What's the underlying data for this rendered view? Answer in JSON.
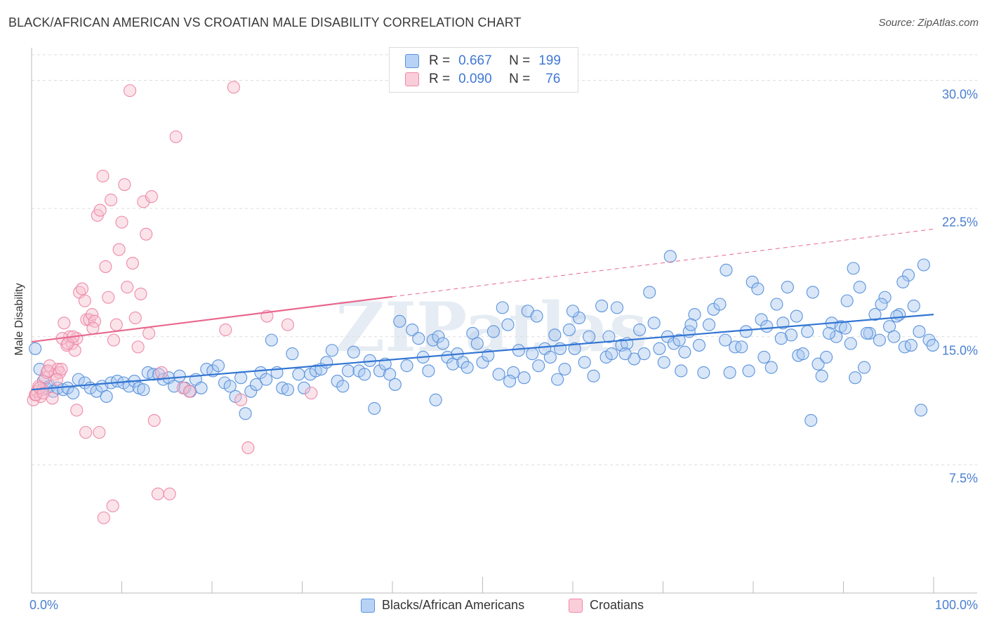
{
  "title": "BLACK/AFRICAN AMERICAN VS CROATIAN MALE DISABILITY CORRELATION CHART",
  "source": "Source: ZipAtlas.com",
  "watermark": "ZIPatlas",
  "legend": {
    "rows": [
      {
        "r_label": "R =",
        "r_value": "0.667",
        "n_label": "N =",
        "n_value": "199"
      },
      {
        "r_label": "R =",
        "r_value": "0.090",
        "n_label": "N =",
        "n_value": "76"
      }
    ]
  },
  "colors": {
    "blue_fill": "#a9c8f0",
    "blue_stroke": "#5b93dc",
    "blue_line": "#3275d3",
    "pink_fill": "#f7c0d0",
    "pink_stroke": "#ee8aa8",
    "pink_line": "#e8678e",
    "tick_text": "#4a7fd0",
    "grid": "#dddddd"
  },
  "chart_data": {
    "type": "scatter",
    "title": "BLACK/AFRICAN AMERICAN VS CROATIAN MALE DISABILITY CORRELATION CHART",
    "xlabel": "",
    "ylabel": "Male Disability",
    "xlim": [
      0,
      100
    ],
    "ylim": [
      0,
      31.5
    ],
    "y_ticks": [
      {
        "value": 7.5,
        "label": "7.5%"
      },
      {
        "value": 15.0,
        "label": "15.0%"
      },
      {
        "value": 22.5,
        "label": "22.5%"
      },
      {
        "value": 30.0,
        "label": "30.0%"
      }
    ],
    "x_tick_labels": {
      "min": "0.0%",
      "max": "100.0%"
    },
    "series": [
      {
        "name": "Blacks/African Americans",
        "R": 0.667,
        "N": 199,
        "trend": {
          "x": [
            0,
            100
          ],
          "y": [
            11.9,
            16.3
          ],
          "dashed_from": null
        },
        "points": [
          [
            0.4,
            14.3
          ],
          [
            0.9,
            13.1
          ],
          [
            1.3,
            12.4
          ],
          [
            1.6,
            12.0
          ],
          [
            2.0,
            12.1
          ],
          [
            2.4,
            11.8
          ],
          [
            2.9,
            12.0
          ],
          [
            3.5,
            11.9
          ],
          [
            4.0,
            12.0
          ],
          [
            4.6,
            11.7
          ],
          [
            5.2,
            12.5
          ],
          [
            5.9,
            12.3
          ],
          [
            6.5,
            12.0
          ],
          [
            7.2,
            11.8
          ],
          [
            7.8,
            12.1
          ],
          [
            8.3,
            11.5
          ],
          [
            8.8,
            12.3
          ],
          [
            9.5,
            12.4
          ],
          [
            10.2,
            12.3
          ],
          [
            10.8,
            12.1
          ],
          [
            11.4,
            12.4
          ],
          [
            11.9,
            12.0
          ],
          [
            12.4,
            11.9
          ],
          [
            12.9,
            12.9
          ],
          [
            13.5,
            12.8
          ],
          [
            14.1,
            12.8
          ],
          [
            14.6,
            12.5
          ],
          [
            15.2,
            12.6
          ],
          [
            15.8,
            12.1
          ],
          [
            16.4,
            12.7
          ],
          [
            17.0,
            12.0
          ],
          [
            17.6,
            11.8
          ],
          [
            18.2,
            12.5
          ],
          [
            18.8,
            12.0
          ],
          [
            19.4,
            13.1
          ],
          [
            20.1,
            13.0
          ],
          [
            20.7,
            13.3
          ],
          [
            21.4,
            12.3
          ],
          [
            22.0,
            12.1
          ],
          [
            22.6,
            11.5
          ],
          [
            23.2,
            12.6
          ],
          [
            23.7,
            10.5
          ],
          [
            24.3,
            11.8
          ],
          [
            24.9,
            12.2
          ],
          [
            25.4,
            12.9
          ],
          [
            26.0,
            12.5
          ],
          [
            26.6,
            14.8
          ],
          [
            27.2,
            12.9
          ],
          [
            27.8,
            12.0
          ],
          [
            28.4,
            11.9
          ],
          [
            28.9,
            14.0
          ],
          [
            29.6,
            12.8
          ],
          [
            30.2,
            12.0
          ],
          [
            30.9,
            12.8
          ],
          [
            31.5,
            13.0
          ],
          [
            32.1,
            13.1
          ],
          [
            32.7,
            13.5
          ],
          [
            33.3,
            14.2
          ],
          [
            33.9,
            12.4
          ],
          [
            34.5,
            12.1
          ],
          [
            35.1,
            13.0
          ],
          [
            35.7,
            14.1
          ],
          [
            36.3,
            13.0
          ],
          [
            36.9,
            12.8
          ],
          [
            37.5,
            13.6
          ],
          [
            38.0,
            10.8
          ],
          [
            38.6,
            13.0
          ],
          [
            39.2,
            13.4
          ],
          [
            39.7,
            12.8
          ],
          [
            40.3,
            12.2
          ],
          [
            40.8,
            15.9
          ],
          [
            41.6,
            13.3
          ],
          [
            42.2,
            15.4
          ],
          [
            42.9,
            14.9
          ],
          [
            43.4,
            13.8
          ],
          [
            44.0,
            13.0
          ],
          [
            44.5,
            14.8
          ],
          [
            45.1,
            15.0
          ],
          [
            45.6,
            14.6
          ],
          [
            46.1,
            13.8
          ],
          [
            46.7,
            13.4
          ],
          [
            47.2,
            14.0
          ],
          [
            47.8,
            13.5
          ],
          [
            48.3,
            13.2
          ],
          [
            48.9,
            15.2
          ],
          [
            49.4,
            14.6
          ],
          [
            50.0,
            13.5
          ],
          [
            50.6,
            13.9
          ],
          [
            51.2,
            15.3
          ],
          [
            51.8,
            12.8
          ],
          [
            52.2,
            16.7
          ],
          [
            52.8,
            15.7
          ],
          [
            53.4,
            12.9
          ],
          [
            54.0,
            14.2
          ],
          [
            54.6,
            12.6
          ],
          [
            55.0,
            16.5
          ],
          [
            55.5,
            14.0
          ],
          [
            56.2,
            13.3
          ],
          [
            56.9,
            14.3
          ],
          [
            57.5,
            13.8
          ],
          [
            58.0,
            15.1
          ],
          [
            58.6,
            14.3
          ],
          [
            59.1,
            13.1
          ],
          [
            59.6,
            15.4
          ],
          [
            60.2,
            14.3
          ],
          [
            60.7,
            16.1
          ],
          [
            61.3,
            13.5
          ],
          [
            61.8,
            15.0
          ],
          [
            62.3,
            12.7
          ],
          [
            63.2,
            16.8
          ],
          [
            63.7,
            13.8
          ],
          [
            64.3,
            14.0
          ],
          [
            64.9,
            16.7
          ],
          [
            65.4,
            14.5
          ],
          [
            66.0,
            14.6
          ],
          [
            66.8,
            13.7
          ],
          [
            67.4,
            15.4
          ],
          [
            67.9,
            14.0
          ],
          [
            68.5,
            17.6
          ],
          [
            69.0,
            15.8
          ],
          [
            69.6,
            14.3
          ],
          [
            70.1,
            13.5
          ],
          [
            70.5,
            15.0
          ],
          [
            71.2,
            14.6
          ],
          [
            71.8,
            14.8
          ],
          [
            72.4,
            14.1
          ],
          [
            72.9,
            15.3
          ],
          [
            73.5,
            16.3
          ],
          [
            74.0,
            14.5
          ],
          [
            74.5,
            12.9
          ],
          [
            75.1,
            15.7
          ],
          [
            75.6,
            16.6
          ],
          [
            76.3,
            16.9
          ],
          [
            76.9,
            14.8
          ],
          [
            77.4,
            12.9
          ],
          [
            78.0,
            14.4
          ],
          [
            78.7,
            14.4
          ],
          [
            79.2,
            15.3
          ],
          [
            79.9,
            18.2
          ],
          [
            80.5,
            17.8
          ],
          [
            80.9,
            16.0
          ],
          [
            81.5,
            15.6
          ],
          [
            82.0,
            13.2
          ],
          [
            82.6,
            16.9
          ],
          [
            83.3,
            15.8
          ],
          [
            83.8,
            17.9
          ],
          [
            84.2,
            15.1
          ],
          [
            85.0,
            13.9
          ],
          [
            85.5,
            14.0
          ],
          [
            86.0,
            15.3
          ],
          [
            86.6,
            17.6
          ],
          [
            87.2,
            13.4
          ],
          [
            87.6,
            12.7
          ],
          [
            88.1,
            13.8
          ],
          [
            88.7,
            15.8
          ],
          [
            89.2,
            15.0
          ],
          [
            89.7,
            15.6
          ],
          [
            90.2,
            15.5
          ],
          [
            90.8,
            14.6
          ],
          [
            91.3,
            12.6
          ],
          [
            91.8,
            17.9
          ],
          [
            92.3,
            13.2
          ],
          [
            92.9,
            15.2
          ],
          [
            93.5,
            16.3
          ],
          [
            94.0,
            14.8
          ],
          [
            94.6,
            17.3
          ],
          [
            95.1,
            15.6
          ],
          [
            95.6,
            15.0
          ],
          [
            96.2,
            16.3
          ],
          [
            96.8,
            14.4
          ],
          [
            97.2,
            18.6
          ],
          [
            97.8,
            16.8
          ],
          [
            98.4,
            15.3
          ],
          [
            98.9,
            19.2
          ],
          [
            99.5,
            14.8
          ],
          [
            53.0,
            12.4
          ],
          [
            56.0,
            16.2
          ],
          [
            60.0,
            16.5
          ],
          [
            64.0,
            15.0
          ],
          [
            70.8,
            19.7
          ],
          [
            72.0,
            13.0
          ],
          [
            77.0,
            18.9
          ],
          [
            81.2,
            13.8
          ],
          [
            84.8,
            16.2
          ],
          [
            86.4,
            10.1
          ],
          [
            88.4,
            15.2
          ],
          [
            90.4,
            17.1
          ],
          [
            92.6,
            15.2
          ],
          [
            94.2,
            16.9
          ],
          [
            95.9,
            16.2
          ],
          [
            97.5,
            14.5
          ],
          [
            98.6,
            10.7
          ],
          [
            99.9,
            14.5
          ],
          [
            44.8,
            11.3
          ],
          [
            58.3,
            12.5
          ],
          [
            65.8,
            14.0
          ],
          [
            73.1,
            15.7
          ],
          [
            79.5,
            13.0
          ],
          [
            83.1,
            14.9
          ],
          [
            91.1,
            19.0
          ],
          [
            96.6,
            18.2
          ]
        ]
      },
      {
        "name": "Croatians",
        "R": 0.09,
        "N": 76,
        "trend": {
          "x": [
            0,
            100
          ],
          "y": [
            14.7,
            21.3
          ],
          "dashed_from": 40
        },
        "points": [
          [
            0.2,
            11.3
          ],
          [
            0.4,
            11.6
          ],
          [
            0.6,
            11.8
          ],
          [
            0.8,
            12.1
          ],
          [
            1.0,
            11.5
          ],
          [
            1.2,
            11.9
          ],
          [
            1.5,
            12.6
          ],
          [
            1.7,
            12.9
          ],
          [
            2.0,
            13.3
          ],
          [
            2.3,
            11.4
          ],
          [
            2.6,
            12.8
          ],
          [
            2.9,
            13.1
          ],
          [
            3.1,
            12.9
          ],
          [
            3.3,
            13.1
          ],
          [
            3.6,
            15.8
          ],
          [
            3.9,
            14.5
          ],
          [
            4.2,
            15.0
          ],
          [
            4.5,
            14.6
          ],
          [
            4.8,
            14.2
          ],
          [
            5.0,
            14.9
          ],
          [
            5.3,
            17.6
          ],
          [
            5.6,
            17.8
          ],
          [
            5.9,
            17.1
          ],
          [
            6.1,
            16.0
          ],
          [
            6.4,
            16.0
          ],
          [
            6.7,
            16.3
          ],
          [
            7.0,
            15.9
          ],
          [
            7.3,
            22.1
          ],
          [
            7.6,
            22.4
          ],
          [
            7.9,
            24.4
          ],
          [
            8.2,
            19.1
          ],
          [
            8.5,
            17.3
          ],
          [
            8.8,
            23.0
          ],
          [
            9.1,
            14.8
          ],
          [
            9.4,
            15.7
          ],
          [
            9.7,
            20.1
          ],
          [
            10.0,
            21.7
          ],
          [
            10.3,
            23.9
          ],
          [
            10.6,
            17.9
          ],
          [
            10.9,
            29.4
          ],
          [
            11.2,
            19.3
          ],
          [
            11.5,
            16.1
          ],
          [
            11.8,
            14.4
          ],
          [
            12.1,
            17.5
          ],
          [
            12.4,
            22.9
          ],
          [
            12.7,
            21.0
          ],
          [
            13.0,
            15.2
          ],
          [
            13.3,
            23.2
          ],
          [
            13.6,
            10.1
          ],
          [
            14.0,
            5.8
          ],
          [
            14.4,
            12.9
          ],
          [
            15.3,
            5.8
          ],
          [
            16.0,
            26.7
          ],
          [
            16.8,
            12.0
          ],
          [
            17.5,
            11.8
          ],
          [
            21.5,
            15.4
          ],
          [
            22.4,
            29.6
          ],
          [
            23.2,
            11.3
          ],
          [
            24.0,
            8.5
          ],
          [
            26.1,
            16.2
          ],
          [
            28.4,
            15.7
          ],
          [
            31.0,
            11.7
          ],
          [
            5.0,
            10.7
          ],
          [
            6.0,
            9.4
          ],
          [
            7.5,
            9.4
          ],
          [
            8.0,
            4.4
          ],
          [
            9.0,
            5.1
          ],
          [
            1.8,
            13.0
          ],
          [
            2.8,
            12.5
          ],
          [
            3.4,
            14.9
          ],
          [
            4.0,
            14.6
          ],
          [
            0.5,
            11.6
          ],
          [
            0.9,
            12.0
          ],
          [
            1.3,
            11.7
          ],
          [
            4.6,
            15.0
          ],
          [
            6.8,
            15.5
          ]
        ]
      }
    ]
  },
  "bottom_legend": [
    {
      "label": "Blacks/African Americans"
    },
    {
      "label": "Croatians"
    }
  ]
}
